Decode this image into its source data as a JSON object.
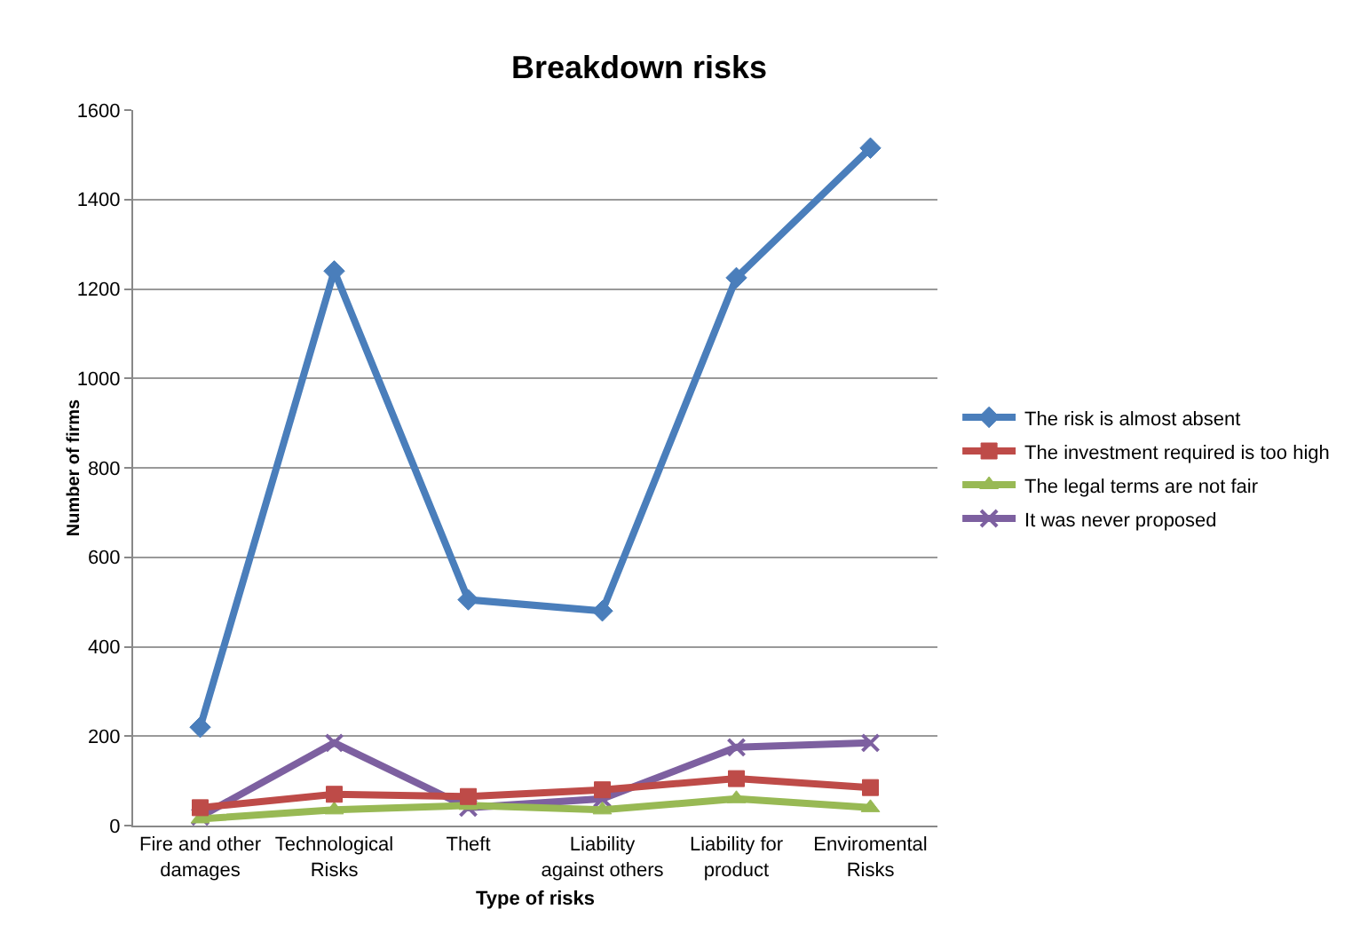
{
  "chart_data": {
    "type": "line",
    "title": "Breakdown risks",
    "xlabel": "Type of risks",
    "ylabel": "Number of firms",
    "categories": [
      "Fire and other damages",
      "Technological Risks",
      "Theft",
      "Liability against others",
      "Liability for product",
      "Enviromental Risks"
    ],
    "series": [
      {
        "name": "The risk is almost absent",
        "color": "#4a7ebb",
        "marker": "diamond",
        "values": [
          220,
          1240,
          505,
          480,
          1225,
          1515
        ]
      },
      {
        "name": "The investment required is too high",
        "color": "#be4b48",
        "marker": "square",
        "values": [
          40,
          70,
          65,
          80,
          105,
          85
        ]
      },
      {
        "name": "The legal terms are not fair",
        "color": "#98b954",
        "marker": "triangle",
        "values": [
          15,
          35,
          45,
          35,
          60,
          40
        ]
      },
      {
        "name": "It was never proposed",
        "color": "#7d60a0",
        "marker": "cross",
        "values": [
          20,
          185,
          40,
          60,
          175,
          185
        ]
      }
    ],
    "ylim": [
      0,
      1600
    ],
    "yticks": [
      0,
      200,
      400,
      600,
      800,
      1000,
      1200,
      1400,
      1600
    ],
    "grid": "y",
    "legend": "right",
    "line_style": "solid"
  }
}
